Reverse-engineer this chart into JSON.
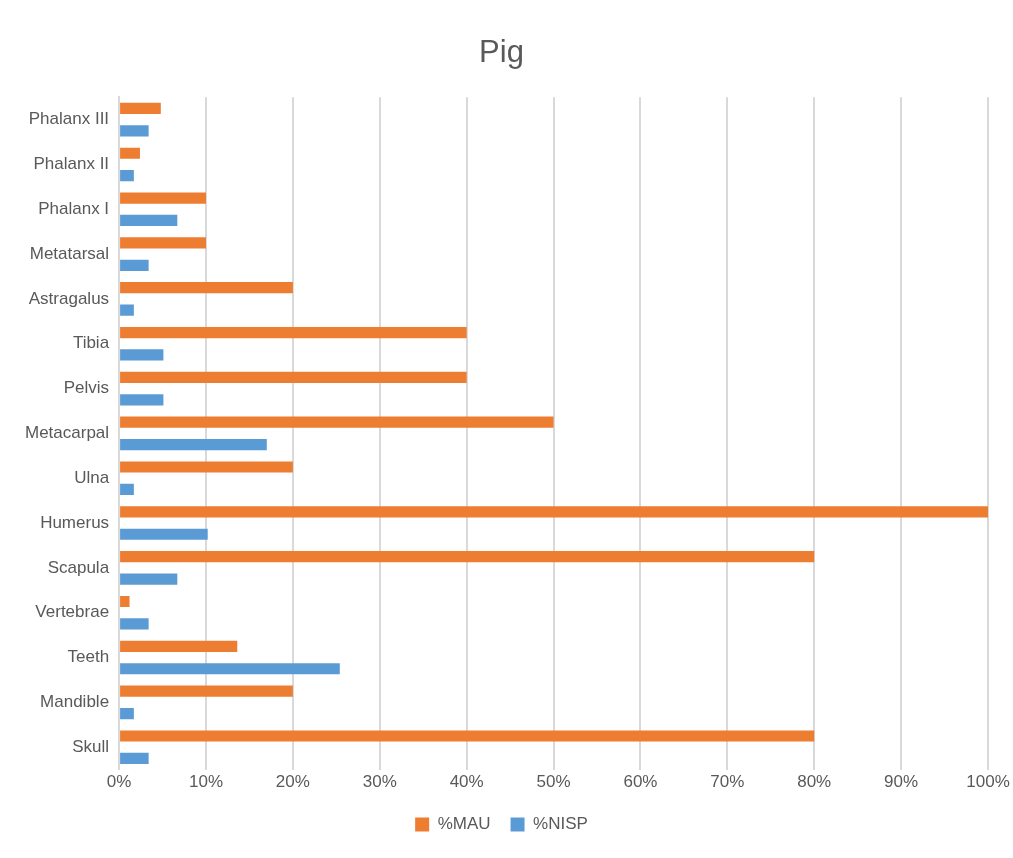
{
  "chart_data": {
    "type": "bar",
    "orientation": "horizontal",
    "title": "Pig",
    "categories": [
      "Phalanx III",
      "Phalanx II",
      "Phalanx I",
      "Metatarsal",
      "Astragalus",
      "Tibia",
      "Pelvis",
      "Metacarpal",
      "Ulna",
      "Humerus",
      "Scapula",
      "Vertebrae",
      "Teeth",
      "Mandible",
      "Skull"
    ],
    "series": [
      {
        "name": "%MAU",
        "color": "#ed7d31",
        "values": [
          4.8,
          2.4,
          10,
          10,
          20,
          40,
          40,
          50,
          20,
          100,
          80,
          1.2,
          13.6,
          20,
          80
        ]
      },
      {
        "name": "%NISP",
        "color": "#5b9bd5",
        "values": [
          3.4,
          1.7,
          6.7,
          3.4,
          1.7,
          5.1,
          5.1,
          17,
          1.7,
          10.2,
          6.7,
          3.4,
          25.4,
          1.7,
          3.4
        ]
      }
    ],
    "xlim": [
      0,
      100
    ],
    "xticks": [
      {
        "value": 0,
        "label": "0%"
      },
      {
        "value": 10,
        "label": "10%"
      },
      {
        "value": 20,
        "label": "20%"
      },
      {
        "value": 30,
        "label": "30%"
      },
      {
        "value": 40,
        "label": "40%"
      },
      {
        "value": 50,
        "label": "50%"
      },
      {
        "value": 60,
        "label": "60%"
      },
      {
        "value": 70,
        "label": "70%"
      },
      {
        "value": 80,
        "label": "80%"
      },
      {
        "value": 90,
        "label": "90%"
      },
      {
        "value": 100,
        "label": "100%"
      }
    ],
    "grid": "x",
    "legend": "bottom"
  }
}
